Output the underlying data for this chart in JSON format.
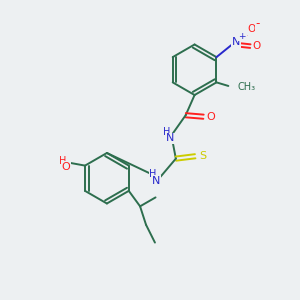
{
  "bg_color": "#edf0f2",
  "bond_color": "#2d6e4e",
  "N_color": "#2828cc",
  "O_color": "#ff2020",
  "S_color": "#cccc00",
  "figsize": [
    3.0,
    3.0
  ],
  "dpi": 100,
  "xlim": [
    0,
    10
  ],
  "ylim": [
    0,
    10
  ],
  "lw": 1.4,
  "fs": 7.5
}
